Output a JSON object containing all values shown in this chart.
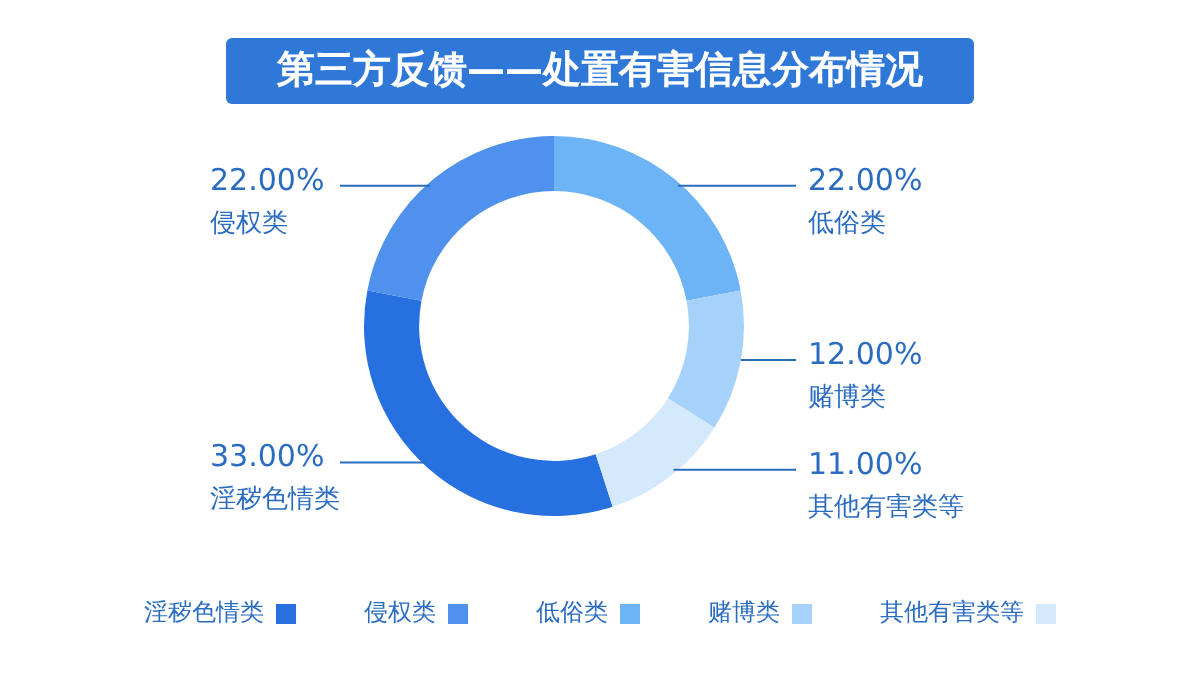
{
  "chart_data": {
    "type": "donut",
    "title": "第三方反馈——处置有害信息分布情况",
    "categories": [
      "淫秽色情类",
      "侵权类",
      "低俗类",
      "赌博类",
      "其他有害类等"
    ],
    "values": [
      33,
      22,
      22,
      12,
      11
    ],
    "value_labels": [
      "33.00%",
      "22.00%",
      "22.00%",
      "12.00%",
      "11.00%"
    ],
    "colors": [
      "#2670e0",
      "#4f91ec",
      "#6db4f7",
      "#a6d2fa",
      "#d4e9fc"
    ],
    "legend": "bottom"
  }
}
